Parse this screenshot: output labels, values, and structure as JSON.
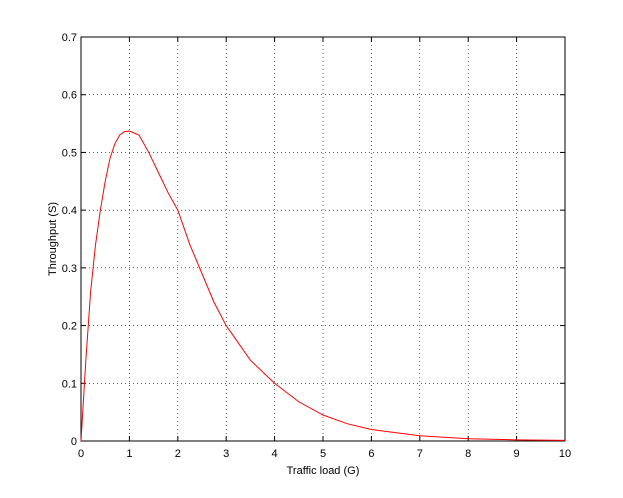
{
  "chart_data": {
    "type": "line",
    "xlabel": "Traffic load (G)",
    "ylabel": "Throughput (S)",
    "x": [
      0,
      0.1,
      0.2,
      0.3,
      0.4,
      0.5,
      0.6,
      0.7,
      0.8,
      0.9,
      1.0,
      1.2,
      1.4,
      1.6,
      1.8,
      2.0,
      2.25,
      2.5,
      2.75,
      3,
      3.5,
      4,
      4.5,
      5,
      5.5,
      6,
      7,
      8,
      9,
      10
    ],
    "series": [
      {
        "color": "#ff0000",
        "values": [
          0,
          0.14,
          0.26,
          0.34,
          0.4,
          0.45,
          0.49,
          0.515,
          0.53,
          0.536,
          0.537,
          0.53,
          0.5,
          0.465,
          0.43,
          0.4,
          0.34,
          0.29,
          0.24,
          0.2,
          0.14,
          0.1,
          0.068,
          0.045,
          0.03,
          0.02,
          0.009,
          0.004,
          0.002,
          0.001
        ]
      }
    ],
    "xlim": [
      0,
      10
    ],
    "ylim": [
      0,
      0.7
    ],
    "xticks": [
      0,
      1,
      2,
      3,
      4,
      5,
      6,
      7,
      8,
      9,
      10
    ],
    "yticks": [
      0,
      0.1,
      0.2,
      0.3,
      0.4,
      0.5,
      0.6,
      0.7
    ],
    "grid": true
  }
}
